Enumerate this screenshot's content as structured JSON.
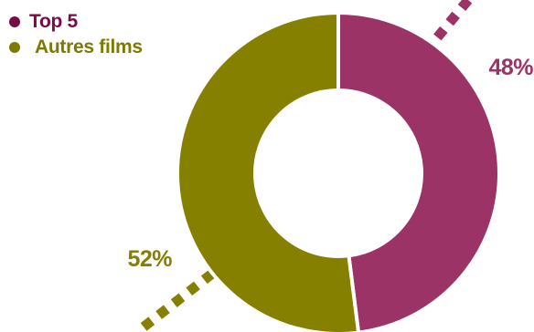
{
  "chart_data": {
    "type": "pie",
    "variant": "donut",
    "title": "",
    "legend_position": "top-left",
    "categories": [
      "Top 5",
      "Autres films"
    ],
    "values": [
      48,
      52
    ],
    "value_labels": [
      "48%",
      "52%"
    ],
    "colors": [
      "#9b3366",
      "#868000"
    ]
  },
  "legend": {
    "items": [
      {
        "label": "Top 5",
        "color": "#7a0b45"
      },
      {
        "label": "Autres films",
        "color": "#7d7a00"
      }
    ]
  }
}
